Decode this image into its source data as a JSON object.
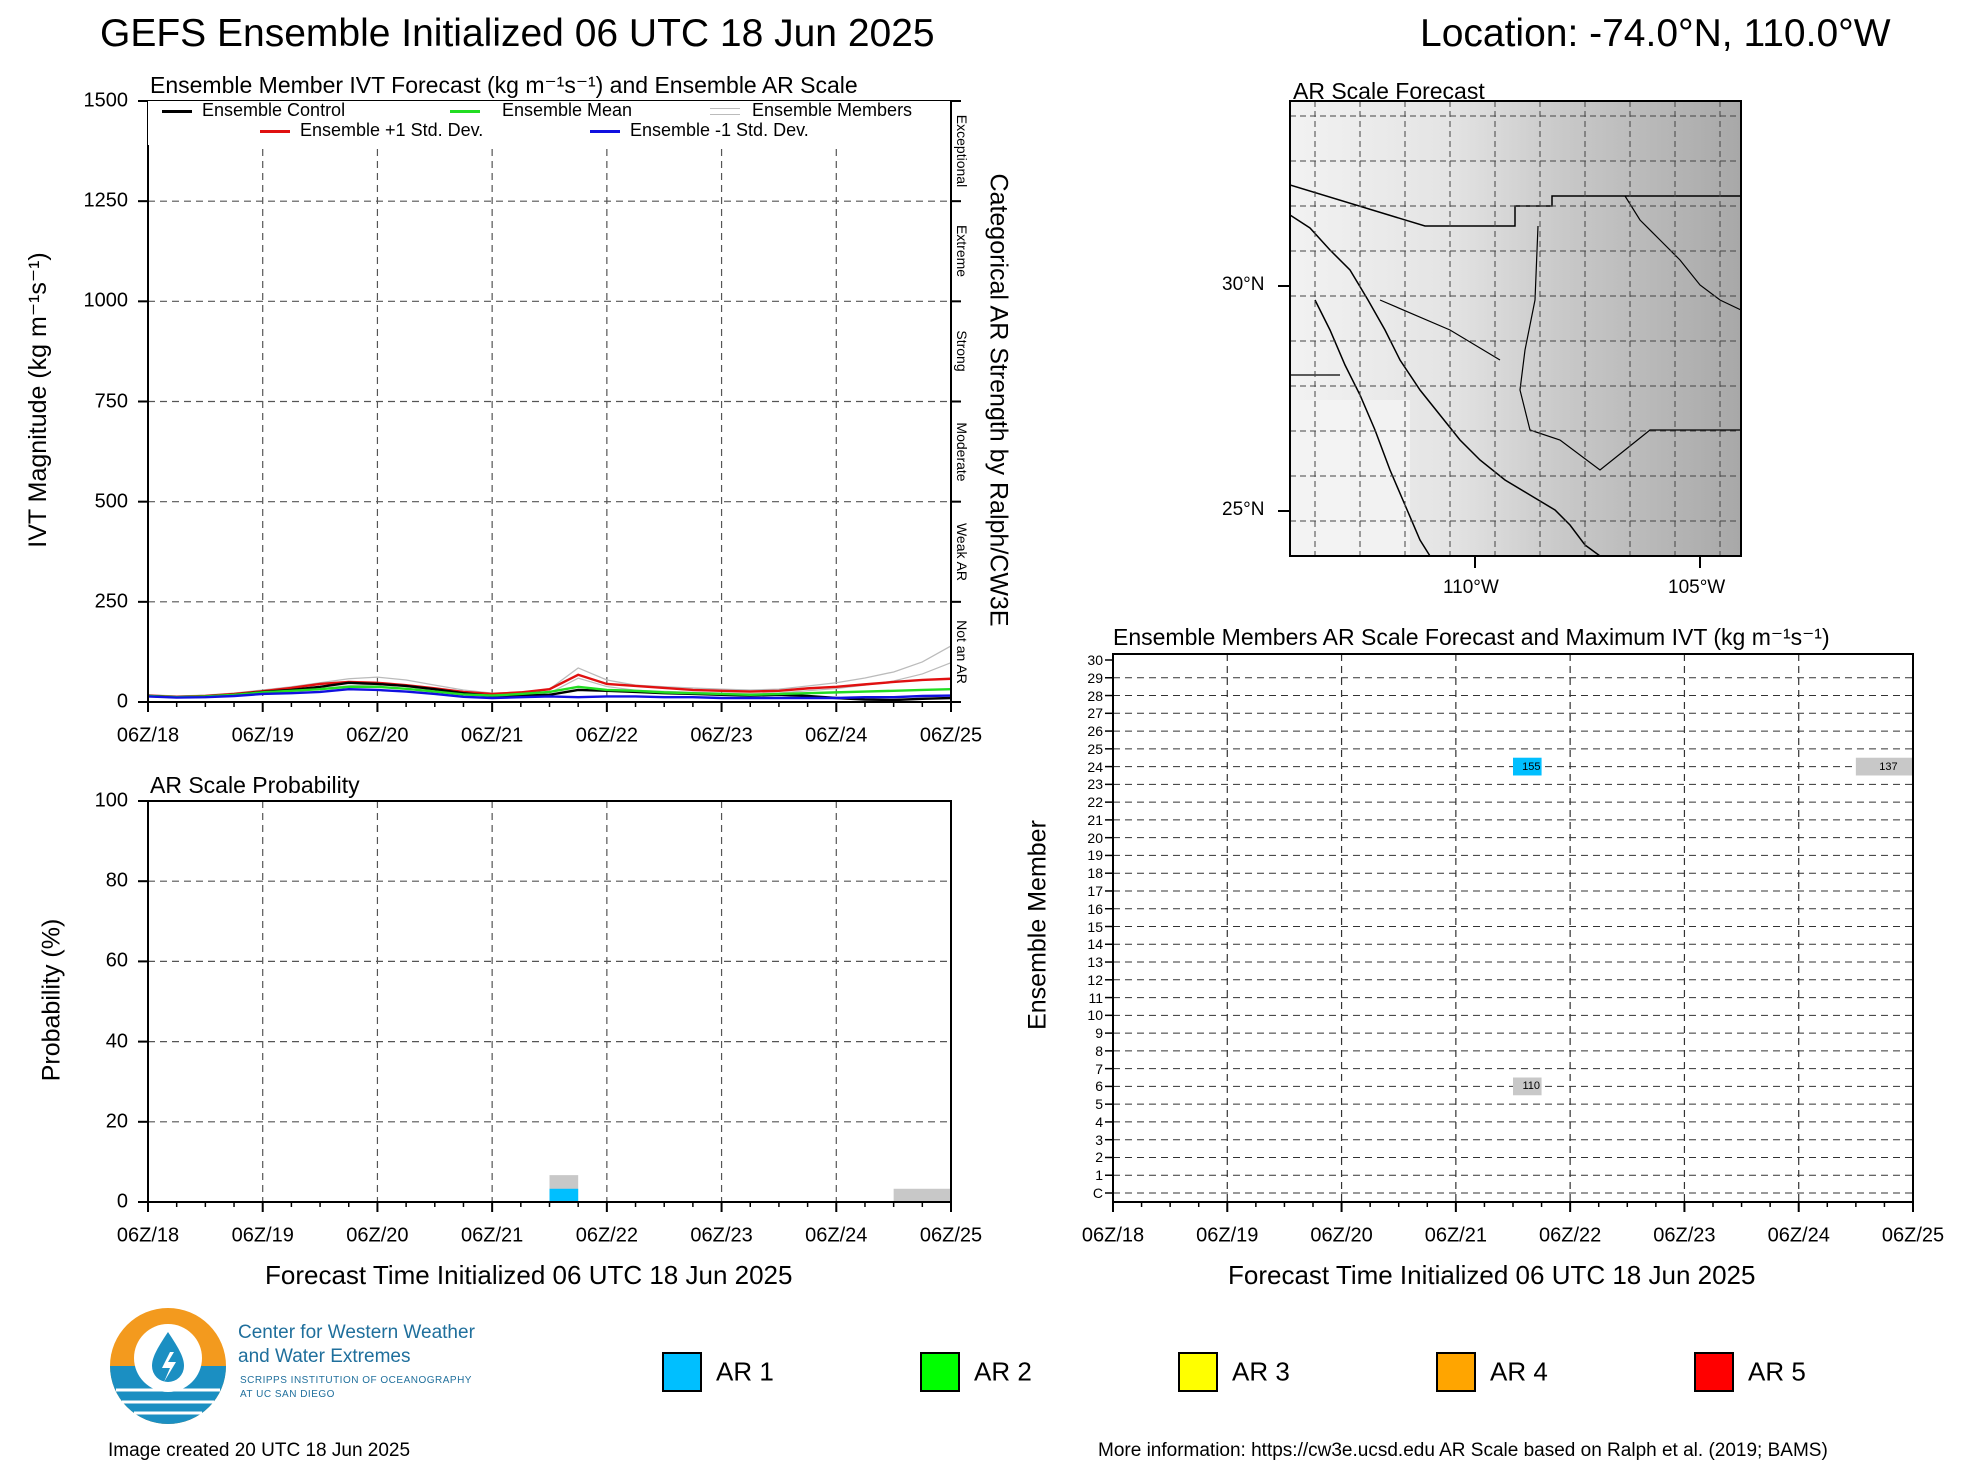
{
  "header": {
    "title": "GEFS Ensemble Initialized 06 UTC 18 Jun 2025",
    "location": "Location: -74.0°N, 110.0°W"
  },
  "time_labels": [
    "06Z/18",
    "06Z/19",
    "06Z/20",
    "06Z/21",
    "06Z/22",
    "06Z/23",
    "06Z/24",
    "06Z/25"
  ],
  "chart_data": [
    {
      "type": "line",
      "title": "Ensemble Member IVT Forecast (kg m⁻¹s⁻¹) and Ensemble AR Scale",
      "ylabel": "IVT Magnitude (kg m⁻¹s⁻¹)",
      "ylabel_right": "Categorical AR Strength by Ralph/CW3E",
      "ylim": [
        0,
        1500
      ],
      "yticks": [
        0,
        250,
        500,
        750,
        1000,
        1250,
        1500
      ],
      "x_hours": [
        0,
        6,
        12,
        18,
        24,
        30,
        36,
        42,
        48,
        54,
        60,
        66,
        72,
        78,
        84,
        90,
        96,
        102,
        108,
        114,
        120,
        126,
        132,
        138,
        144,
        150,
        156,
        162,
        168
      ],
      "legend": [
        {
          "label": "Ensemble Control",
          "color": "#000000"
        },
        {
          "label": "Ensemble Mean",
          "color": "#22dd22"
        },
        {
          "label": "Ensemble Members",
          "color": "#bbbbbb"
        },
        {
          "label": "Ensemble +1 Std. Dev.",
          "color": "#e01010"
        },
        {
          "label": "Ensemble -1 Std. Dev.",
          "color": "#1010e0"
        }
      ],
      "categories_right": [
        "Not an AR",
        "Weak AR",
        "Moderate",
        "Strong",
        "Extreme",
        "Exceptional"
      ],
      "series": [
        {
          "name": "Ensemble Members",
          "color": "#bbbbbb",
          "values": [
            18,
            15,
            17,
            22,
            30,
            38,
            48,
            58,
            62,
            55,
            42,
            30,
            22,
            25,
            32,
            85,
            55,
            42,
            38,
            35,
            32,
            30,
            32,
            40,
            48,
            60,
            75,
            100,
            140
          ]
        },
        {
          "name": "Ensemble +1 Std. Dev.",
          "color": "#e01010",
          "values": [
            16,
            13,
            15,
            20,
            27,
            35,
            45,
            50,
            48,
            42,
            34,
            25,
            20,
            24,
            32,
            68,
            45,
            40,
            35,
            30,
            28,
            26,
            28,
            34,
            38,
            44,
            50,
            55,
            58
          ]
        },
        {
          "name": "Ensemble Control",
          "color": "#000000",
          "values": [
            15,
            12,
            14,
            18,
            25,
            30,
            38,
            48,
            45,
            40,
            32,
            22,
            15,
            16,
            18,
            30,
            28,
            25,
            22,
            20,
            18,
            16,
            18,
            15,
            10,
            6,
            5,
            8,
            10
          ]
        },
        {
          "name": "Ensemble Mean",
          "color": "#22dd22",
          "values": [
            15,
            12,
            14,
            18,
            24,
            28,
            32,
            38,
            38,
            33,
            26,
            19,
            16,
            20,
            25,
            38,
            30,
            28,
            24,
            22,
            20,
            18,
            20,
            22,
            24,
            26,
            28,
            30,
            32
          ]
        },
        {
          "name": "Ensemble -1 Std. Dev.",
          "color": "#1010e0",
          "values": [
            14,
            11,
            12,
            15,
            20,
            22,
            25,
            32,
            30,
            26,
            20,
            13,
            10,
            12,
            14,
            12,
            14,
            14,
            12,
            12,
            10,
            10,
            10,
            10,
            10,
            12,
            12,
            15,
            16
          ]
        }
      ]
    },
    {
      "type": "bar",
      "title": "AR Scale Probability",
      "xlabel": "Forecast Time Initialized 06 UTC 18 Jun 2025",
      "ylabel": "Probability (%)",
      "ylim": [
        0,
        100
      ],
      "yticks": [
        0,
        20,
        40,
        60,
        80,
        100
      ],
      "bars": [
        {
          "hour_start": 84,
          "hour_end": 90,
          "ar1": 3.3,
          "members_gray": 6.7
        },
        {
          "hour_start": 156,
          "hour_end": 168,
          "ar1": 0,
          "members_gray": 3.3
        }
      ]
    },
    {
      "type": "heatmap",
      "title": "Ensemble Members AR Scale Forecast and Maximum IVT (kg m⁻¹s⁻¹)",
      "xlabel": "Forecast Time Initialized 06 UTC 18 Jun 2025",
      "ylabel": "Ensemble Member",
      "members": [
        "C",
        "1",
        "2",
        "3",
        "4",
        "5",
        "6",
        "7",
        "8",
        "9",
        "10",
        "11",
        "12",
        "13",
        "14",
        "15",
        "16",
        "17",
        "18",
        "19",
        "20",
        "21",
        "22",
        "23",
        "24",
        "25",
        "26",
        "27",
        "28",
        "29",
        "30"
      ],
      "cells": [
        {
          "member": "24",
          "hour_start": 84,
          "hour_end": 90,
          "category": "AR 1",
          "color": "#00bfff",
          "max_ivt": "155"
        },
        {
          "member": "24",
          "hour_start": 156,
          "hour_end": 168,
          "category": "none",
          "color": "#c8c8c8",
          "max_ivt": "137"
        },
        {
          "member": "6",
          "hour_start": 84,
          "hour_end": 90,
          "category": "none",
          "color": "#c8c8c8",
          "max_ivt": "110"
        }
      ]
    }
  ],
  "map": {
    "title": "AR Scale Forecast",
    "lat_labels": [
      "30°N",
      "25°N"
    ],
    "lon_labels": [
      "110°W",
      "105°W"
    ]
  },
  "ar_legend": [
    {
      "label": "AR 1",
      "color": "#00bfff"
    },
    {
      "label": "AR 2",
      "color": "#00ff00"
    },
    {
      "label": "AR 3",
      "color": "#ffff00"
    },
    {
      "label": "AR 4",
      "color": "#ffa500"
    },
    {
      "label": "AR 5",
      "color": "#ff0000"
    }
  ],
  "logo": {
    "line1": "Center for Western Weather",
    "line2": "and Water Extremes",
    "line3": "SCRIPPS INSTITUTION OF OCEANOGRAPHY",
    "line4": "AT UC SAN DIEGO"
  },
  "footer": {
    "created": "Image created 20 UTC 18 Jun 2025",
    "more_info": "More information: https://cw3e.ucsd.edu AR Scale based on Ralph et al. (2019; BAMS)"
  }
}
